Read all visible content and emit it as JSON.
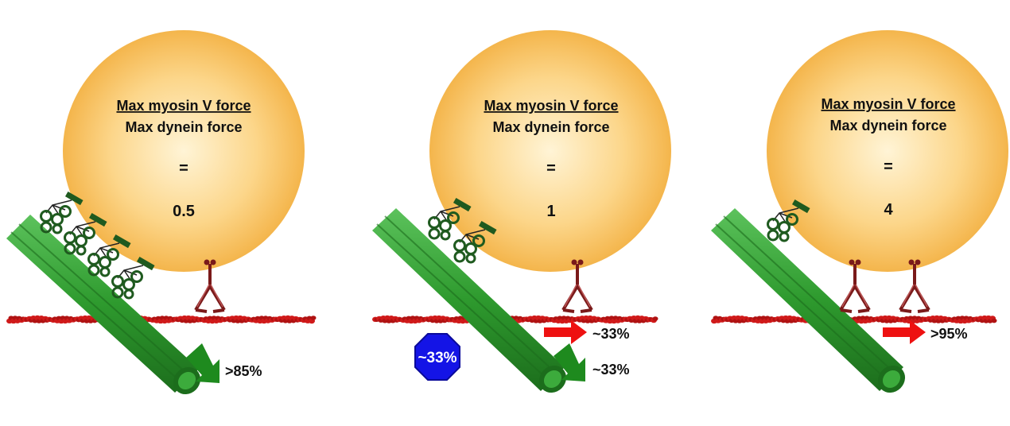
{
  "colors": {
    "bead": "#f5b94a",
    "bead_light": "#fde6b2",
    "microtubule": "#2e9a2e",
    "microtubule_dark": "#1c6d1c",
    "actin": "#d01a1a",
    "myosin": "#7a1a1a",
    "dynein": "#1f5a1f",
    "red_arrow": "#ee1111",
    "green_arrow": "#1e8a1e",
    "stop_sign": "#1414e6"
  },
  "panels": [
    {
      "numerator": "Max myosin V force",
      "denominator": "Max dynein force",
      "equals": "=",
      "ratio": "0.5",
      "dynein_count": 4,
      "myosin_count": 1,
      "dynein_outcome": ">85%",
      "myosin_outcome": null,
      "stop_label": null
    },
    {
      "numerator": "Max myosin V force",
      "denominator": "Max dynein force",
      "equals": "=",
      "ratio": "1",
      "dynein_count": 2,
      "myosin_count": 1,
      "dynein_outcome": "~33%",
      "myosin_outcome": "~33%",
      "stop_label": "~33%"
    },
    {
      "numerator": "Max myosin V force",
      "denominator": "Max dynein force",
      "equals": "=",
      "ratio": "4",
      "dynein_count": 1,
      "myosin_count": 2,
      "dynein_outcome": null,
      "myosin_outcome": ">95%",
      "stop_label": null
    }
  ]
}
